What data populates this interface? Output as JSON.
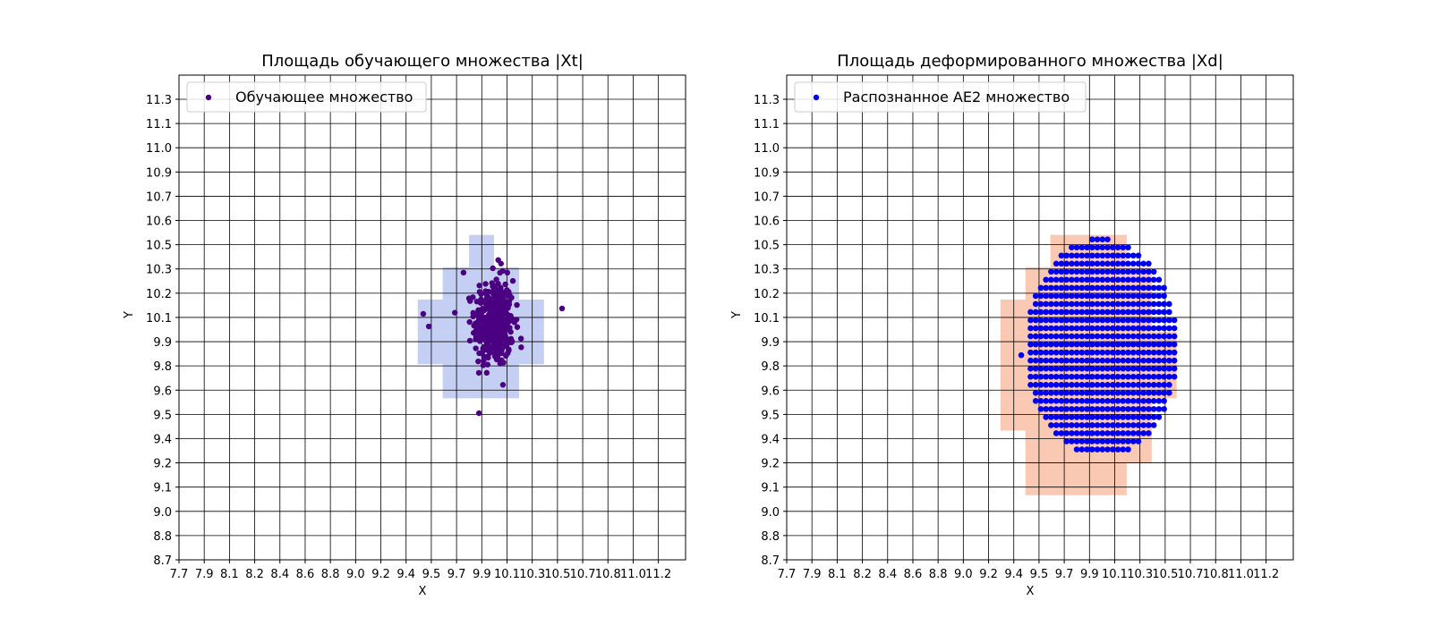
{
  "charts": [
    {
      "id": "left",
      "title": "Площадь обучающего множества |Xt|",
      "xlabel": "X",
      "ylabel": "Y",
      "x_ticks": [
        "7.7",
        "7.9",
        "8.1",
        "8.2",
        "8.4",
        "8.6",
        "8.8",
        "9.0",
        "9.2",
        "9.4",
        "9.5",
        "9.7",
        "9.9",
        "10.1",
        "10.3",
        "10.5",
        "10.7",
        "10.8",
        "11.0",
        "11.2"
      ],
      "y_ticks": [
        "8.7",
        "8.8",
        "9.0",
        "9.1",
        "9.2",
        "9.4",
        "9.5",
        "9.6",
        "9.8",
        "9.9",
        "10.1",
        "10.2",
        "10.3",
        "10.5",
        "10.6",
        "10.7",
        "10.9",
        "11.0",
        "11.1",
        "11.3"
      ],
      "legend_label": "Обучающее множество",
      "marker_color": "#4b0082",
      "cell_color": "#c5cff3"
    },
    {
      "id": "right",
      "title": "Площадь деформированного множества |Xd|",
      "xlabel": "X",
      "ylabel": "Y",
      "x_ticks": [
        "7.7",
        "7.9",
        "8.1",
        "8.2",
        "8.4",
        "8.6",
        "8.8",
        "9.0",
        "9.2",
        "9.4",
        "9.5",
        "9.7",
        "9.9",
        "10.1",
        "10.3",
        "10.5",
        "10.7",
        "10.8",
        "11.0",
        "11.2"
      ],
      "y_ticks": [
        "8.7",
        "8.8",
        "9.0",
        "9.1",
        "9.2",
        "9.4",
        "9.5",
        "9.6",
        "9.8",
        "9.9",
        "10.1",
        "10.2",
        "10.3",
        "10.5",
        "10.6",
        "10.7",
        "10.9",
        "11.0",
        "11.1",
        "11.3"
      ],
      "legend_label": "Распознанное AE2 множество",
      "marker_color": "#0000ee",
      "cell_color": "#f9c9b4"
    }
  ],
  "chart_data": [
    {
      "type": "scatter",
      "title": "Площадь обучающего множества |Xt|",
      "xlabel": "X",
      "ylabel": "Y",
      "xlim": [
        7.7,
        11.35
      ],
      "ylim": [
        8.7,
        11.4
      ],
      "grid": true,
      "legend_position": "top-left",
      "grid_step": 0.1818,
      "series": [
        {
          "name": "Обучающее множество",
          "distribution": "gaussian-cluster",
          "center": [
            9.97,
            10.02
          ],
          "std": [
            0.07,
            0.12
          ],
          "count": 420
        }
      ],
      "highlighted_cells_rows": [
        {
          "y": [
            10.33,
            10.51
          ],
          "x": [
            9.79,
            9.97
          ]
        },
        {
          "y": [
            10.15,
            10.33
          ],
          "x": [
            9.6,
            10.15
          ]
        },
        {
          "y": [
            9.97,
            10.15
          ],
          "x": [
            9.42,
            10.33
          ]
        },
        {
          "y": [
            9.79,
            9.97
          ],
          "x": [
            9.42,
            10.33
          ]
        },
        {
          "y": [
            9.6,
            9.79
          ],
          "x": [
            9.6,
            10.15
          ]
        }
      ]
    },
    {
      "type": "scatter",
      "title": "Площадь деформированного множества |Xd|",
      "xlabel": "X",
      "ylabel": "Y",
      "xlim": [
        7.7,
        11.35
      ],
      "ylim": [
        8.7,
        11.4
      ],
      "grid": true,
      "legend_position": "top-left",
      "grid_step": 0.1818,
      "series": [
        {
          "name": "Распознанное AE2 множество",
          "distribution": "ellipse-lattice",
          "center": [
            9.97,
            9.88
          ],
          "radius": [
            0.55,
            0.61
          ],
          "spacing": [
            0.037,
            0.045
          ]
        }
      ],
      "highlighted_cells_rows": [
        {
          "y": [
            10.33,
            10.51
          ],
          "x": [
            9.6,
            10.15
          ]
        },
        {
          "y": [
            10.15,
            10.33
          ],
          "x": [
            9.42,
            10.33
          ]
        },
        {
          "y": [
            9.97,
            10.15
          ],
          "x": [
            9.24,
            10.33
          ]
        },
        {
          "y": [
            9.79,
            9.97
          ],
          "x": [
            9.24,
            10.51
          ]
        },
        {
          "y": [
            9.6,
            9.79
          ],
          "x": [
            9.24,
            10.51
          ]
        },
        {
          "y": [
            9.42,
            9.6
          ],
          "x": [
            9.24,
            10.33
          ]
        },
        {
          "y": [
            9.24,
            9.42
          ],
          "x": [
            9.42,
            10.33
          ]
        },
        {
          "y": [
            9.06,
            9.24
          ],
          "x": [
            9.42,
            10.15
          ]
        }
      ]
    }
  ]
}
